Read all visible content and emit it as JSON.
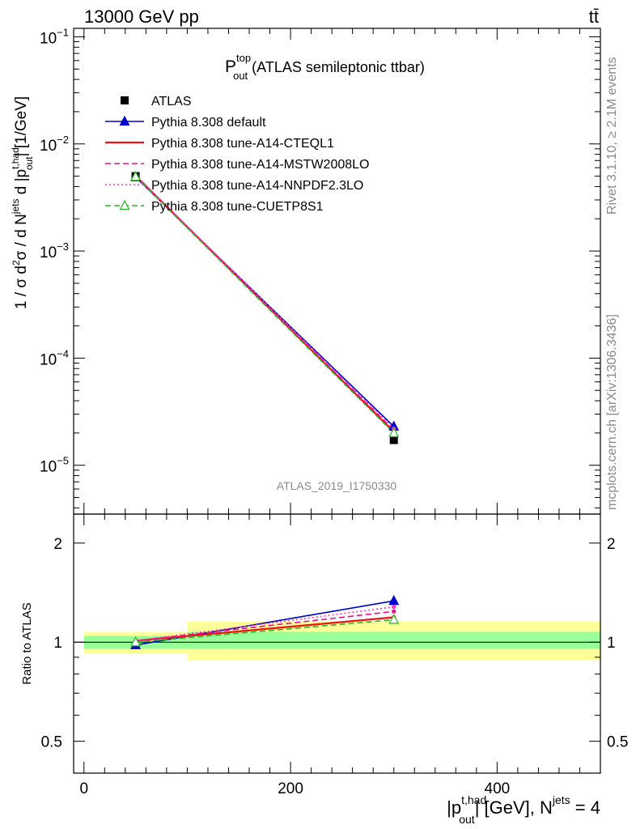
{
  "header": {
    "energy_label": "13000 GeV pp",
    "process_label": "tt̄"
  },
  "side_labels": {
    "rivet": "Rivet 3.1.10, ≥ 2.1M events",
    "mcplots": "mcplots.cern.ch [arXiv:1306.3436]"
  },
  "analysis_id": "ATLAS_2019_I1750330",
  "title": {
    "main": "P",
    "sup": "top",
    "sub": "out",
    "rest": " (ATLAS semileptonic ttbar)"
  },
  "ylabel_main": "1 / σ d²σ / d Nʲᵉᵗˢ d |pᵗʼʰᵃᵈₒᵤₜ| [1/GeV]",
  "ylabel_ratio": "Ratio to ATLAS",
  "xlabel": {
    "p1": "|p",
    "sup1": "t,had",
    "sub1": "out",
    "p2": "| [GeV], N",
    "sup2": "jets",
    "p3": " = 4"
  },
  "colors": {
    "data": "#000000",
    "default": "#0000cc",
    "cteql1": "#ee1111",
    "mstw": "#ee1188",
    "nnpdf": "#ff33cc",
    "cuetp": "#22bb22",
    "band_inner": "#99ff99",
    "band_outer": "#ffff99"
  },
  "chart_data": {
    "type": "line",
    "x_axis": {
      "range": [
        -10,
        500
      ],
      "ticks": [
        0,
        200,
        400
      ],
      "tick_labels": [
        "0",
        "200",
        "400"
      ]
    },
    "main_panel": {
      "scale": "log",
      "y_range": [
        3.5e-06,
        0.12
      ],
      "major_ticks": [
        1e-05,
        0.0001,
        0.001,
        0.01,
        0.1
      ],
      "tick_labels": [
        {
          "base": "10",
          "exp": "−5"
        },
        {
          "base": "10",
          "exp": "−4"
        },
        {
          "base": "10",
          "exp": "−3"
        },
        {
          "base": "10",
          "exp": "−2"
        },
        {
          "base": "10",
          "exp": "−1"
        }
      ]
    },
    "ratio_panel": {
      "scale": "log",
      "y_range": [
        0.4,
        2.45
      ],
      "ticks": [
        0.5,
        1,
        2
      ],
      "tick_labels": [
        "0.5",
        "1",
        "2"
      ]
    },
    "data": {
      "name": "ATLAS",
      "bins": [
        [
          0,
          100
        ],
        [
          100,
          500
        ]
      ],
      "x": [
        50,
        300
      ],
      "y": [
        0.005,
        1.72e-05
      ],
      "stat_band": [
        [
          0.955,
          1.045
        ],
        [
          0.955,
          1.075
        ]
      ],
      "total_band": [
        [
          0.925,
          1.075
        ],
        [
          0.88,
          1.155
        ]
      ]
    },
    "series": [
      {
        "name": "Pythia 8.308 default",
        "key": "default",
        "x": [
          50,
          300
        ],
        "y": [
          0.0049,
          2.3e-05
        ],
        "ratio": [
          0.98,
          1.335
        ],
        "marker": "triangle-filled",
        "dash": "solid"
      },
      {
        "name": "Pythia 8.308 tune-A14-CTEQL1",
        "key": "cteql1",
        "x": [
          50,
          300
        ],
        "y": [
          0.00505,
          2.05e-05
        ],
        "ratio": [
          1.01,
          1.19
        ],
        "marker": "none",
        "dash": "solid"
      },
      {
        "name": "Pythia 8.308 tune-A14-MSTW2008LO",
        "key": "mstw",
        "x": [
          50,
          300
        ],
        "y": [
          0.00505,
          2.13e-05
        ],
        "ratio": [
          1.01,
          1.24
        ],
        "marker": "none",
        "dash": "dashed"
      },
      {
        "name": "Pythia 8.308 tune-A14-NNPDF2.3LO",
        "key": "nnpdf",
        "x": [
          50,
          300
        ],
        "y": [
          0.00505,
          2.2e-05
        ],
        "ratio": [
          1.01,
          1.28
        ],
        "marker": "none",
        "dash": "dotted"
      },
      {
        "name": "Pythia 8.308 tune-CUETP8S1",
        "key": "cuetp",
        "x": [
          50,
          300
        ],
        "y": [
          0.00495,
          2e-05
        ],
        "ratio": [
          1.0,
          1.17
        ],
        "marker": "triangle-open",
        "dash": "dashed"
      }
    ]
  }
}
